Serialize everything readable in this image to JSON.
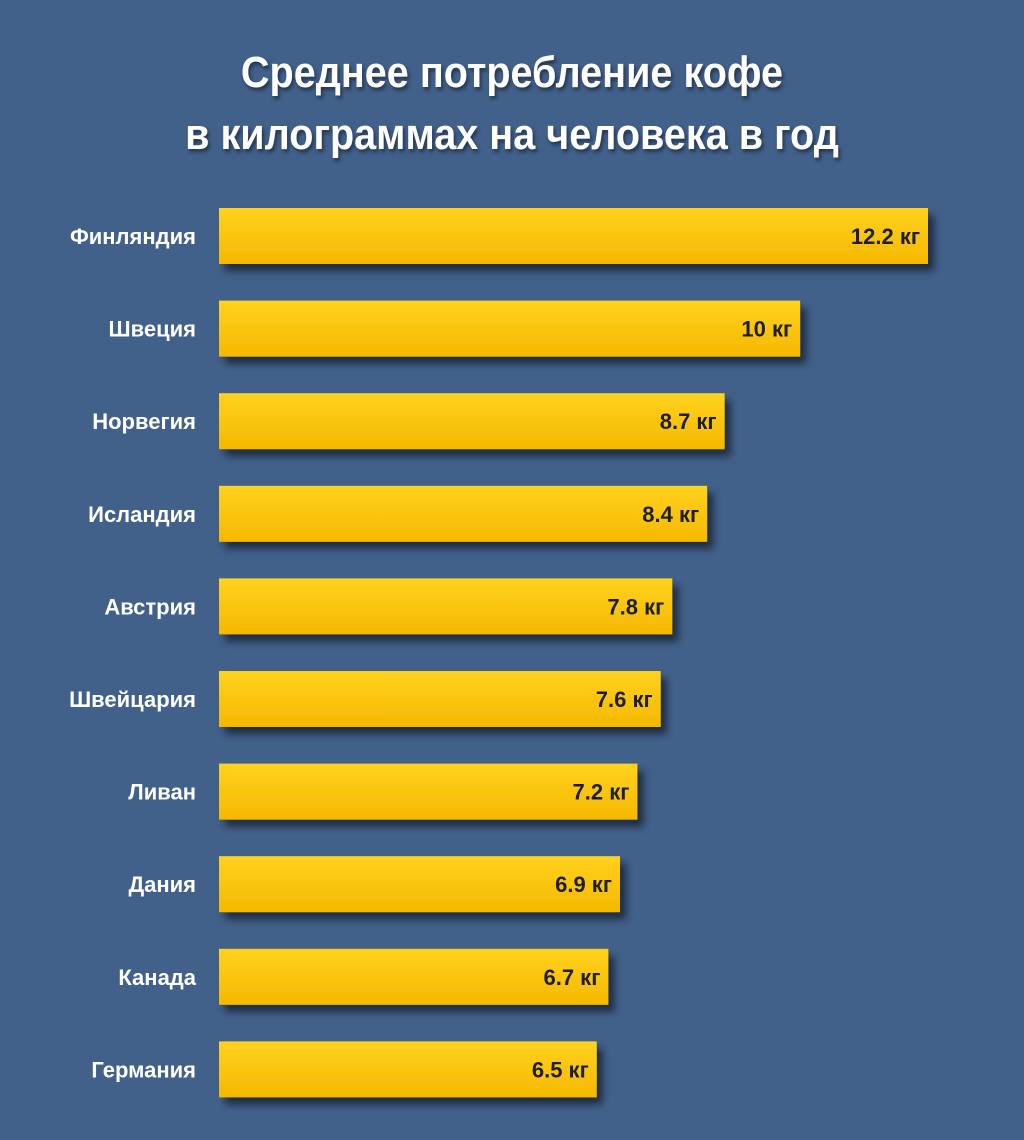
{
  "colors": {
    "background": "#41608a",
    "bar_top": "#ffd21f",
    "bar_bottom": "#f5b800",
    "label_text": "#ffffff",
    "value_text": "#1e1e1e"
  },
  "chart_data": {
    "type": "bar",
    "orientation": "horizontal",
    "title_lines": [
      "Среднее потребление кофе",
      "в килограммах на человека в год"
    ],
    "categories": [
      "Финляндия",
      "Швеция",
      "Норвегия",
      "Исландия",
      "Австрия",
      "Швейцария",
      "Ливан",
      "Дания",
      "Канада",
      "Германия"
    ],
    "values": [
      12.2,
      10,
      8.7,
      8.4,
      7.8,
      7.6,
      7.2,
      6.9,
      6.7,
      6.5
    ],
    "value_labels": [
      "12.2 кг",
      "10 кг",
      "8.7 кг",
      "8.4 кг",
      "7.8 кг",
      "7.6 кг",
      "7.2 кг",
      "6.9 кг",
      "6.7 кг",
      "6.5 кг"
    ],
    "unit": "кг",
    "xlim": [
      0,
      12.2
    ],
    "xlabel": "",
    "ylabel": "",
    "grid": false,
    "legend": "none"
  }
}
